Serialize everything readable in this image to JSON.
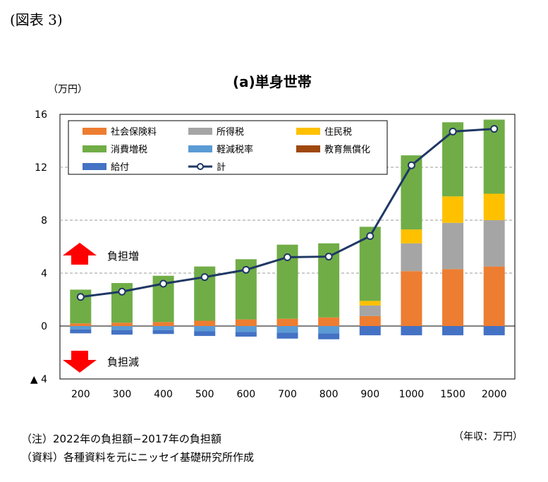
{
  "figure_label": "(図表 3)",
  "unit_label": "（万円）",
  "x_unit_label": "（年収：万円）",
  "notes": [
    "（注）2022年の負担額−2017年の負担額",
    "（資料）各種資料を元にニッセイ基礎研究所作成"
  ],
  "annotations": {
    "increase": "負担増",
    "decrease": "負担減"
  },
  "chart_data": {
    "type": "bar",
    "stacked": true,
    "title": "(a)単身世帯",
    "xlabel": "",
    "ylabel": "",
    "ylim": [
      -4,
      16
    ],
    "yticks": [
      -4,
      0,
      4,
      8,
      12,
      16
    ],
    "ytick_labels": [
      "▲ 4",
      "0",
      "4",
      "8",
      "12",
      "16"
    ],
    "grid": "horizontal-dashed",
    "legend_position": "top-left",
    "categories": [
      "200",
      "300",
      "400",
      "500",
      "600",
      "700",
      "800",
      "900",
      "1000",
      "1500",
      "2000"
    ],
    "series": [
      {
        "name": "社会保険料",
        "color": "#ED7D31",
        "kind": "bar",
        "values": [
          0.2,
          0.25,
          0.3,
          0.4,
          0.5,
          0.55,
          0.65,
          0.75,
          4.15,
          4.3,
          4.5
        ]
      },
      {
        "name": "所得税",
        "color": "#A5A5A5",
        "kind": "bar",
        "values": [
          0,
          0,
          0,
          0,
          0,
          0,
          0,
          0.8,
          2.1,
          3.5,
          3.5
        ]
      },
      {
        "name": "住民税",
        "color": "#FFC000",
        "kind": "bar",
        "values": [
          0,
          0,
          0,
          0,
          0,
          0,
          0,
          0.35,
          1.05,
          2.0,
          2.0
        ]
      },
      {
        "name": "消費増税",
        "color": "#70AD47",
        "kind": "bar",
        "values": [
          2.55,
          3.0,
          3.5,
          4.1,
          4.55,
          5.6,
          5.6,
          5.6,
          5.6,
          5.6,
          5.6
        ]
      },
      {
        "name": "軽減税率",
        "color": "#5B9BD5",
        "kind": "bar",
        "values": [
          -0.25,
          -0.3,
          -0.3,
          -0.4,
          -0.45,
          -0.5,
          -0.55,
          0,
          0,
          0,
          0
        ]
      },
      {
        "name": "教育無償化",
        "color": "#9E480E",
        "kind": "bar",
        "values": [
          0,
          0,
          0,
          0,
          0,
          0,
          0,
          0,
          0,
          0,
          0
        ]
      },
      {
        "name": "給付",
        "color": "#4472C4",
        "kind": "bar",
        "values": [
          -0.3,
          -0.35,
          -0.3,
          -0.35,
          -0.35,
          -0.45,
          -0.45,
          -0.7,
          -0.7,
          -0.7,
          -0.7
        ]
      },
      {
        "name": "計",
        "color": "#1F3864",
        "kind": "line",
        "values": [
          2.2,
          2.6,
          3.2,
          3.7,
          4.25,
          5.2,
          5.25,
          6.8,
          12.15,
          14.7,
          14.9
        ]
      }
    ]
  }
}
